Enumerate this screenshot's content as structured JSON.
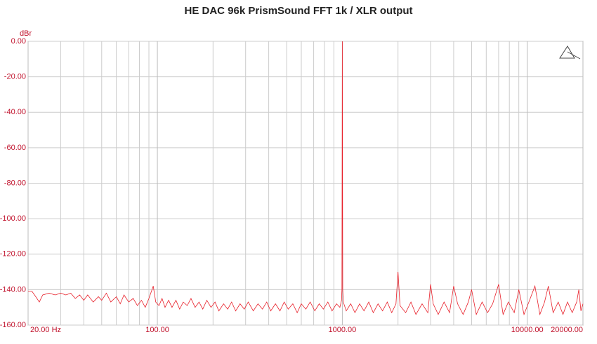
{
  "chart_data": {
    "type": "line",
    "title": "HE DAC 96k PrismSound FFT 1k / XLR output",
    "ylabel": "dBr",
    "xscale": "log",
    "grid": true,
    "xlim": [
      20,
      20000
    ],
    "ylim": [
      -160,
      0
    ],
    "yticks": [
      {
        "value": 0,
        "label": "0.00"
      },
      {
        "value": -20,
        "label": "-20.00"
      },
      {
        "value": -40,
        "label": "-40.00"
      },
      {
        "value": -60,
        "label": "-60.00"
      },
      {
        "value": -80,
        "label": "-80.00"
      },
      {
        "value": -100,
        "label": "-100.00"
      },
      {
        "value": -120,
        "label": "-120.00"
      },
      {
        "value": -140,
        "label": "-140.00"
      },
      {
        "value": -160,
        "label": "-160.00"
      }
    ],
    "xticks": [
      {
        "value": 20,
        "label": "20.00 Hz"
      },
      {
        "value": 100,
        "label": "100.00"
      },
      {
        "value": 1000,
        "label": "1000.00"
      },
      {
        "value": 10000,
        "label": "10000.00"
      },
      {
        "value": 20000,
        "label": "20000.00"
      }
    ],
    "minor_xticks": [
      30,
      40,
      50,
      60,
      70,
      80,
      90,
      200,
      300,
      400,
      500,
      600,
      700,
      800,
      900,
      2000,
      3000,
      4000,
      5000,
      6000,
      7000,
      8000,
      9000
    ],
    "series": [
      {
        "color": "#e8202a",
        "x": [
          20,
          21,
          22,
          23,
          24,
          26,
          28,
          30,
          32,
          34,
          36,
          38,
          40,
          42,
          45,
          48,
          50,
          53,
          56,
          60,
          63,
          66,
          70,
          74,
          78,
          82,
          86,
          90,
          95,
          98,
          102,
          106,
          110,
          115,
          120,
          126,
          132,
          138,
          145,
          152,
          160,
          168,
          176,
          185,
          195,
          205,
          215,
          228,
          240,
          252,
          265,
          280,
          295,
          310,
          330,
          350,
          370,
          390,
          410,
          435,
          460,
          485,
          510,
          540,
          570,
          600,
          635,
          670,
          710,
          750,
          790,
          835,
          880,
          930,
          970,
          990,
          995,
          1000,
          1005,
          1012,
          1050,
          1110,
          1170,
          1240,
          1310,
          1390,
          1470,
          1560,
          1650,
          1750,
          1850,
          1950,
          2000,
          2050,
          2200,
          2350,
          2500,
          2700,
          2900,
          3000,
          3100,
          3300,
          3550,
          3800,
          4000,
          4200,
          4500,
          4800,
          5000,
          5300,
          5700,
          6100,
          6500,
          7000,
          7400,
          7900,
          8500,
          9000,
          9600,
          10200,
          11000,
          11700,
          12400,
          13000,
          13800,
          14700,
          15600,
          16500,
          17500,
          18500,
          19000,
          19500,
          20000
        ],
        "values": [
          -141,
          -141,
          -144,
          -147,
          -143,
          -142,
          -143,
          -142,
          -143,
          -142,
          -145,
          -143,
          -146,
          -143,
          -147,
          -144,
          -146,
          -142,
          -147,
          -144,
          -148,
          -143,
          -147,
          -145,
          -149,
          -146,
          -150,
          -145,
          -138,
          -147,
          -149,
          -145,
          -150,
          -146,
          -150,
          -146,
          -151,
          -147,
          -149,
          -145,
          -150,
          -147,
          -151,
          -146,
          -150,
          -147,
          -152,
          -148,
          -151,
          -147,
          -152,
          -148,
          -151,
          -147,
          -152,
          -148,
          -151,
          -147,
          -152,
          -148,
          -152,
          -147,
          -151,
          -148,
          -153,
          -148,
          -151,
          -147,
          -152,
          -148,
          -151,
          -147,
          -152,
          -148,
          -150,
          -146,
          -140,
          0,
          -140,
          -147,
          -152,
          -148,
          -153,
          -148,
          -152,
          -147,
          -153,
          -148,
          -152,
          -147,
          -153,
          -148,
          -130,
          -149,
          -153,
          -147,
          -154,
          -148,
          -153,
          -137,
          -148,
          -154,
          -147,
          -153,
          -138,
          -148,
          -154,
          -147,
          -140,
          -154,
          -147,
          -153,
          -148,
          -137,
          -154,
          -147,
          -153,
          -140,
          -154,
          -147,
          -138,
          -154,
          -147,
          -138,
          -153,
          -147,
          -154,
          -147,
          -153,
          -147,
          -140,
          -152,
          -148
        ]
      }
    ]
  }
}
